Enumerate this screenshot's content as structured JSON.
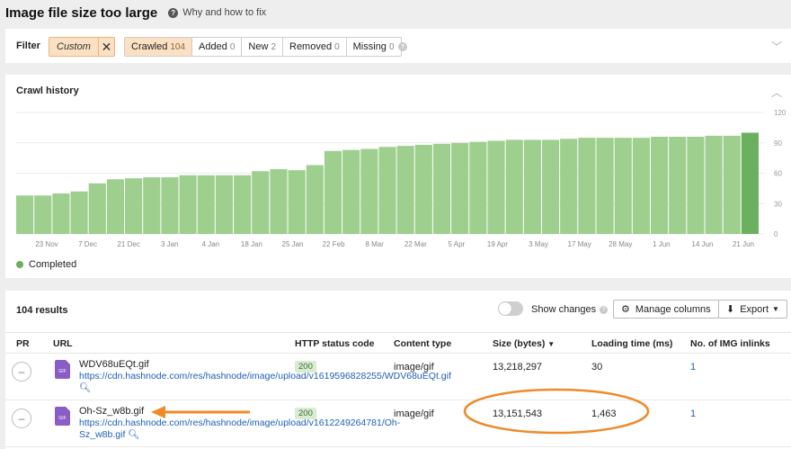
{
  "header": {
    "title": "Image file size too large",
    "help_text": "Why and how to fix"
  },
  "filter": {
    "label": "Filter",
    "custom_chip": "Custom",
    "tabs": [
      {
        "label": "Crawled",
        "count": "104",
        "active": true
      },
      {
        "label": "Added",
        "count": "0"
      },
      {
        "label": "New",
        "count": "2"
      },
      {
        "label": "Removed",
        "count": "0"
      },
      {
        "label": "Missing",
        "count": "0"
      }
    ]
  },
  "crawl_history": {
    "title": "Crawl history",
    "legend": "Completed",
    "colors": {
      "bar": "#9fcf8f",
      "bar_latest": "#6ab05e"
    }
  },
  "chart_data": {
    "type": "bar",
    "title": "Crawl history",
    "x_tick_labels": [
      "23 Nov",
      "7 Dec",
      "21 Dec",
      "3 Jan",
      "4 Jan",
      "18 Jan",
      "25 Jan",
      "22 Feb",
      "8 Mar",
      "22 Mar",
      "5 Apr",
      "19 Apr",
      "3 May",
      "17 May",
      "28 May",
      "1 Jun",
      "14 Jun",
      "21 Jun"
    ],
    "yticks": [
      "0",
      "30",
      "60",
      "90",
      "120"
    ],
    "ylim": [
      0,
      120
    ],
    "values": [
      38,
      38,
      40,
      42,
      50,
      54,
      55,
      56,
      56,
      58,
      58,
      58,
      58,
      62,
      64,
      63,
      68,
      82,
      83,
      84,
      86,
      87,
      88,
      89,
      90,
      91,
      92,
      93,
      93,
      93,
      94,
      95,
      95,
      95,
      95,
      96,
      96,
      96,
      97,
      97
    ],
    "latest_value": 100,
    "legend": [
      "Completed"
    ]
  },
  "results": {
    "count_label": "104 results",
    "show_changes": "Show changes",
    "manage_columns": "Manage columns",
    "export": "Export",
    "columns": [
      "PR",
      "URL",
      "HTTP status code",
      "Content type",
      "Size (bytes)",
      "Loading time (ms)",
      "No. of IMG inlinks"
    ],
    "rows": [
      {
        "name": "WDV68uEQt.gif",
        "url": "https://cdn.hashnode.com/res/hashnode/image/upload/v1619596828255/WDV68uEQt.gif",
        "status": "200",
        "type": "image/gif",
        "size": "13,218,297",
        "load": "30",
        "inlinks": "1"
      },
      {
        "name": "Oh-Sz_w8b.gif",
        "url": "https://cdn.hashnode.com/res/hashnode/image/upload/v1612249264781/Oh-Sz_w8b.gif",
        "status": "200",
        "type": "image/gif",
        "size": "13,151,543",
        "load": "1,463",
        "inlinks": "1"
      }
    ],
    "file_badge": "GIF"
  }
}
